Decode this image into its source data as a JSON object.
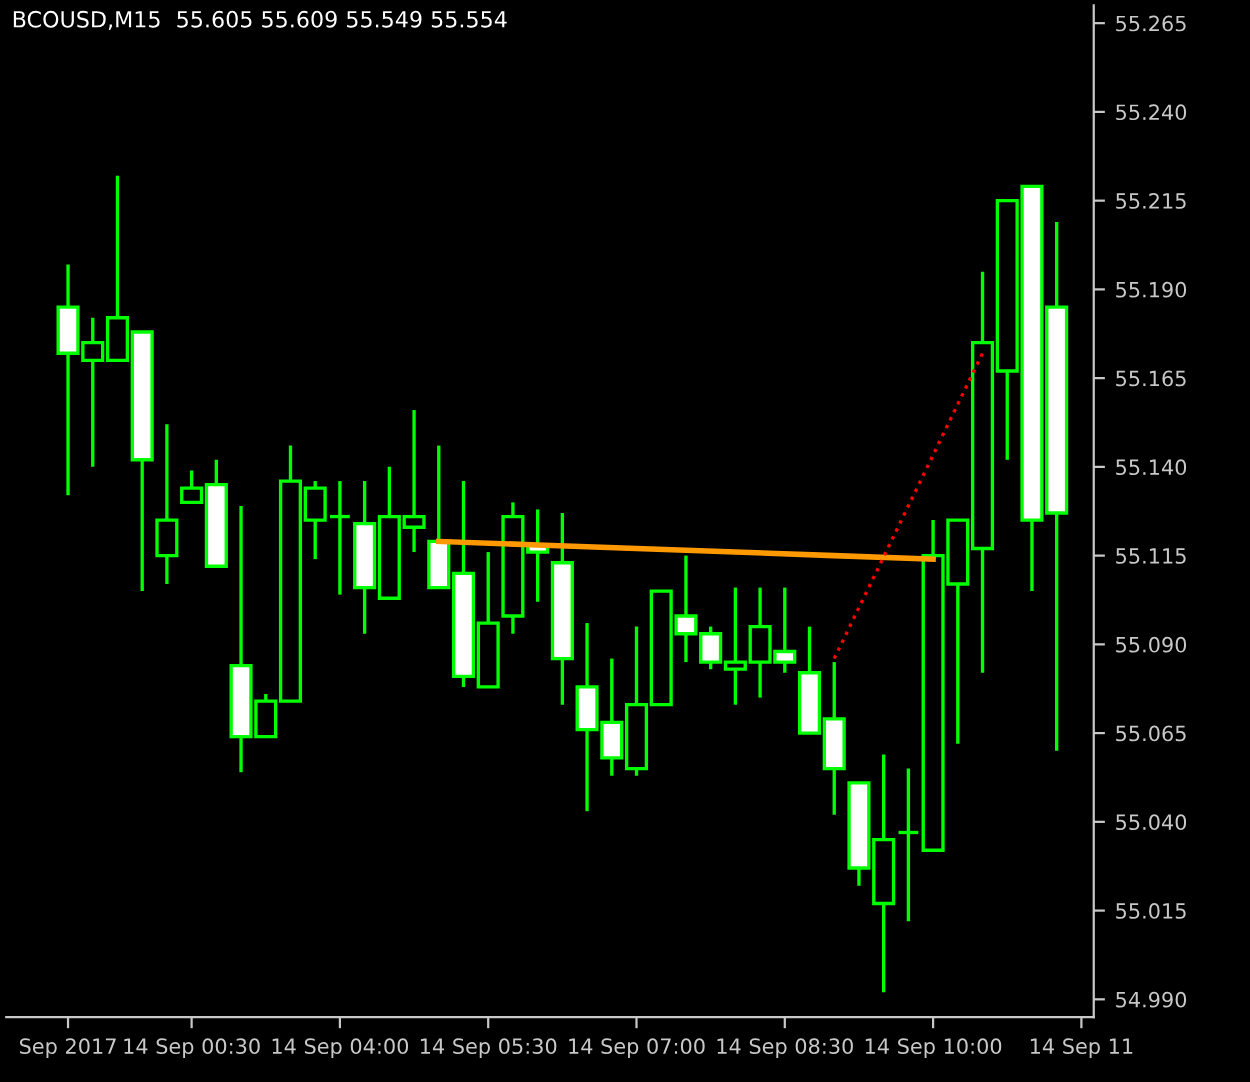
{
  "chart_data": {
    "type": "candlestick",
    "title": "BCOUSD,M15  55.605 55.609 55.549 55.554",
    "categories": [
      "Sep 2017",
      null,
      null,
      null,
      null,
      "14 Sep 00:30",
      null,
      null,
      null,
      null,
      null,
      "14 Sep 04:00",
      null,
      null,
      null,
      null,
      null,
      "14 Sep 05:30",
      null,
      null,
      null,
      null,
      null,
      "14 Sep 07:00",
      null,
      null,
      null,
      null,
      null,
      "14 Sep 08:30",
      null,
      null,
      null,
      null,
      null,
      "14 Sep 10:00",
      null,
      null,
      null,
      null,
      null,
      "14 Sep 11"
    ],
    "ohlc": [
      [
        55.185,
        55.197,
        55.132,
        55.172
      ],
      [
        55.17,
        55.182,
        55.14,
        55.175
      ],
      [
        55.17,
        55.222,
        55.17,
        55.182
      ],
      [
        55.178,
        55.178,
        55.105,
        55.142
      ],
      [
        55.115,
        55.152,
        55.107,
        55.125
      ],
      [
        55.13,
        55.139,
        55.13,
        55.134
      ],
      [
        55.135,
        55.142,
        55.112,
        55.112
      ],
      [
        55.084,
        55.129,
        55.054,
        55.064
      ],
      [
        55.064,
        55.076,
        55.064,
        55.074
      ],
      [
        55.074,
        55.146,
        55.074,
        55.136
      ],
      [
        55.125,
        55.136,
        55.114,
        55.134
      ],
      [
        55.126,
        55.136,
        55.104,
        55.126
      ],
      [
        55.124,
        55.136,
        55.093,
        55.106
      ],
      [
        55.103,
        55.14,
        55.103,
        55.126
      ],
      [
        55.123,
        55.156,
        55.116,
        55.126
      ],
      [
        55.119,
        55.146,
        55.106,
        55.106
      ],
      [
        55.11,
        55.136,
        55.078,
        55.081
      ],
      [
        55.078,
        55.116,
        55.078,
        55.096
      ],
      [
        55.098,
        55.13,
        55.093,
        55.126
      ],
      [
        55.118,
        55.128,
        55.102,
        55.116
      ],
      [
        55.113,
        55.127,
        55.073,
        55.086
      ],
      [
        55.078,
        55.096,
        55.043,
        55.066
      ],
      [
        55.068,
        55.086,
        55.053,
        55.058
      ],
      [
        55.055,
        55.095,
        55.053,
        55.073
      ],
      [
        55.073,
        55.105,
        55.073,
        55.105
      ],
      [
        55.098,
        55.115,
        55.085,
        55.093
      ],
      [
        55.093,
        55.095,
        55.083,
        55.085
      ],
      [
        55.083,
        55.106,
        55.073,
        55.085
      ],
      [
        55.085,
        55.106,
        55.075,
        55.095
      ],
      [
        55.088,
        55.106,
        55.082,
        55.085
      ],
      [
        55.082,
        55.095,
        55.065,
        55.065
      ],
      [
        55.069,
        55.085,
        55.042,
        55.055
      ],
      [
        55.051,
        55.051,
        55.022,
        55.027
      ],
      [
        55.017,
        55.059,
        54.992,
        55.035
      ],
      [
        55.037,
        55.055,
        55.012,
        55.037
      ],
      [
        55.032,
        55.125,
        55.032,
        55.115
      ],
      [
        55.107,
        55.125,
        55.062,
        55.125
      ],
      [
        55.117,
        55.195,
        55.082,
        55.175
      ],
      [
        55.167,
        55.215,
        55.142,
        55.215
      ],
      [
        55.219,
        55.219,
        55.105,
        55.125
      ],
      [
        55.185,
        55.209,
        55.06,
        55.127
      ],
      null
    ],
    "color": "#00ff00",
    "colors": [
      "#ffffff",
      "#000000",
      "#000000",
      "#ffffff",
      "#000000",
      "#000000",
      "#ffffff",
      "#ffffff",
      "#000000",
      "#000000",
      "#000000",
      null,
      "#ffffff",
      "#000000",
      "#000000",
      "#ffffff",
      "#ffffff",
      "#000000",
      "#000000",
      "#ffffff",
      "#ffffff",
      "#ffffff",
      "#ffffff",
      "#000000",
      "#000000",
      "#ffffff",
      "#ffffff",
      "#000000",
      "#000000",
      "#ffffff",
      "#ffffff",
      "#ffffff",
      "#ffffff",
      "#000000",
      null,
      "#000000",
      "#000000",
      "#000000",
      "#000000",
      "#ffffff",
      "#ffffff",
      null
    ],
    "series": [
      {
        "type": "line",
        "color": "#ff9900",
        "line_style": "solid",
        "values": [
          null,
          null,
          null,
          null,
          null,
          null,
          null,
          null,
          null,
          null,
          null,
          null,
          null,
          null,
          null,
          55.119,
          null,
          null,
          null,
          55.118,
          null,
          null,
          null,
          55.117,
          null,
          null,
          null,
          55.116,
          null,
          null,
          null,
          55.115,
          null,
          null,
          null,
          55.114,
          null,
          null,
          null,
          null,
          null,
          null
        ]
      },
      {
        "type": "line",
        "color": "#ff0000",
        "line_style": "dotted",
        "values": [
          null,
          null,
          null,
          null,
          null,
          null,
          null,
          null,
          null,
          null,
          null,
          null,
          null,
          null,
          null,
          null,
          null,
          null,
          null,
          null,
          null,
          null,
          null,
          null,
          null,
          null,
          null,
          null,
          null,
          null,
          null,
          55.086,
          null,
          null,
          null,
          null,
          null,
          55.172,
          null,
          null,
          null,
          null
        ]
      }
    ],
    "ylim": [
      54.985,
      55.27
    ],
    "yticks": [
      {
        "value": 54.99,
        "label": "54.990"
      },
      55.015,
      {
        "value": 55.04,
        "label": "55.040"
      },
      55.065,
      {
        "value": 55.09,
        "label": "55.090"
      },
      55.115,
      {
        "value": 55.14,
        "label": "55.140"
      },
      55.165,
      {
        "value": 55.19,
        "label": "55.190"
      },
      55.215,
      {
        "value": 55.24,
        "label": "55.240"
      },
      55.265
    ],
    "grid": false,
    "legend": false
  }
}
